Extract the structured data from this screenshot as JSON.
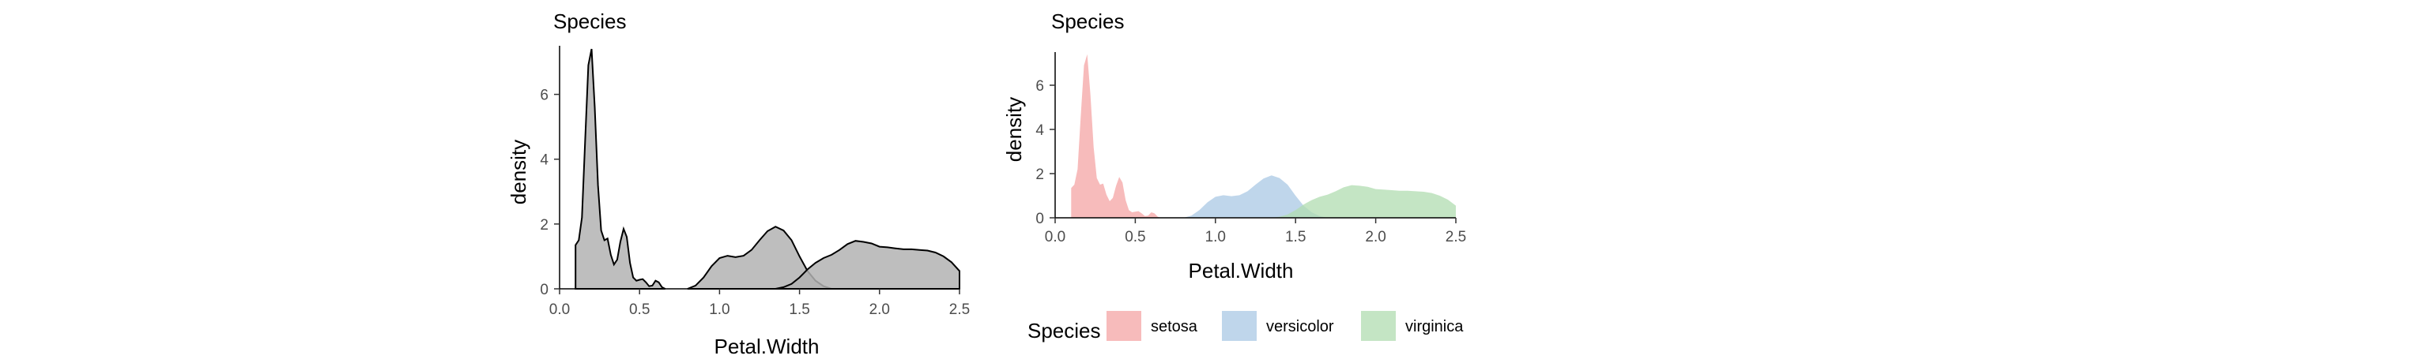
{
  "chart_data": [
    {
      "type": "area",
      "title": "Species",
      "xlabel": "Petal.Width",
      "ylabel": "density",
      "xlim": [
        0.0,
        2.5
      ],
      "ylim": [
        0,
        7.5
      ],
      "x_ticks": [
        "0.0",
        "0.5",
        "1.0",
        "1.5",
        "2.0",
        "2.5"
      ],
      "y_ticks": [
        "0",
        "2",
        "4",
        "6"
      ],
      "grid": false,
      "fill_color": "#b3b3b3",
      "line_color": "#000000",
      "series": [
        {
          "points": [
            [
              0.1,
              1.35
            ],
            [
              0.12,
              1.5
            ],
            [
              0.14,
              2.2
            ],
            [
              0.16,
              4.6
            ],
            [
              0.18,
              6.9
            ],
            [
              0.2,
              7.4
            ],
            [
              0.22,
              5.6
            ],
            [
              0.24,
              3.2
            ],
            [
              0.26,
              1.8
            ],
            [
              0.28,
              1.5
            ],
            [
              0.3,
              1.55
            ],
            [
              0.32,
              1.05
            ],
            [
              0.34,
              0.75
            ],
            [
              0.36,
              0.9
            ],
            [
              0.38,
              1.45
            ],
            [
              0.4,
              1.85
            ],
            [
              0.42,
              1.6
            ],
            [
              0.44,
              0.8
            ],
            [
              0.46,
              0.35
            ],
            [
              0.48,
              0.25
            ],
            [
              0.5,
              0.28
            ],
            [
              0.52,
              0.3
            ],
            [
              0.54,
              0.2
            ],
            [
              0.56,
              0.08
            ],
            [
              0.58,
              0.1
            ],
            [
              0.6,
              0.25
            ],
            [
              0.62,
              0.2
            ],
            [
              0.64,
              0.05
            ],
            [
              0.66,
              0.0
            ]
          ]
        },
        {
          "points": [
            [
              0.8,
              0.0
            ],
            [
              0.85,
              0.1
            ],
            [
              0.9,
              0.35
            ],
            [
              0.95,
              0.7
            ],
            [
              1.0,
              0.95
            ],
            [
              1.05,
              1.02
            ],
            [
              1.1,
              0.98
            ],
            [
              1.15,
              1.02
            ],
            [
              1.2,
              1.2
            ],
            [
              1.25,
              1.5
            ],
            [
              1.3,
              1.78
            ],
            [
              1.35,
              1.92
            ],
            [
              1.4,
              1.8
            ],
            [
              1.45,
              1.5
            ],
            [
              1.5,
              1.0
            ],
            [
              1.55,
              0.55
            ],
            [
              1.6,
              0.25
            ],
            [
              1.65,
              0.08
            ],
            [
              1.7,
              0.0
            ]
          ]
        },
        {
          "points": [
            [
              1.35,
              0.0
            ],
            [
              1.4,
              0.05
            ],
            [
              1.45,
              0.15
            ],
            [
              1.5,
              0.35
            ],
            [
              1.55,
              0.6
            ],
            [
              1.6,
              0.8
            ],
            [
              1.65,
              0.95
            ],
            [
              1.7,
              1.05
            ],
            [
              1.75,
              1.2
            ],
            [
              1.8,
              1.38
            ],
            [
              1.85,
              1.48
            ],
            [
              1.9,
              1.45
            ],
            [
              1.95,
              1.4
            ],
            [
              2.0,
              1.3
            ],
            [
              2.05,
              1.28
            ],
            [
              2.1,
              1.25
            ],
            [
              2.15,
              1.22
            ],
            [
              2.2,
              1.22
            ],
            [
              2.25,
              1.2
            ],
            [
              2.3,
              1.18
            ],
            [
              2.35,
              1.12
            ],
            [
              2.4,
              1.0
            ],
            [
              2.45,
              0.82
            ],
            [
              2.5,
              0.55
            ]
          ]
        }
      ]
    },
    {
      "type": "area",
      "title": "Species",
      "xlabel": "Petal.Width",
      "ylabel": "density",
      "xlim": [
        0.0,
        2.5
      ],
      "ylim": [
        0,
        7.5
      ],
      "x_ticks": [
        "0.0",
        "0.5",
        "1.0",
        "1.5",
        "2.0",
        "2.5"
      ],
      "y_ticks": [
        "0",
        "2",
        "4",
        "6"
      ],
      "grid": false,
      "legend_position": "bottom",
      "series": [
        {
          "name": "setosa",
          "color": "#f4a4a4",
          "points": [
            [
              0.1,
              1.35
            ],
            [
              0.12,
              1.5
            ],
            [
              0.14,
              2.2
            ],
            [
              0.16,
              4.6
            ],
            [
              0.18,
              6.9
            ],
            [
              0.2,
              7.4
            ],
            [
              0.22,
              5.6
            ],
            [
              0.24,
              3.2
            ],
            [
              0.26,
              1.8
            ],
            [
              0.28,
              1.5
            ],
            [
              0.3,
              1.55
            ],
            [
              0.32,
              1.05
            ],
            [
              0.34,
              0.75
            ],
            [
              0.36,
              0.9
            ],
            [
              0.38,
              1.45
            ],
            [
              0.4,
              1.85
            ],
            [
              0.42,
              1.6
            ],
            [
              0.44,
              0.8
            ],
            [
              0.46,
              0.35
            ],
            [
              0.48,
              0.25
            ],
            [
              0.5,
              0.28
            ],
            [
              0.52,
              0.3
            ],
            [
              0.54,
              0.2
            ],
            [
              0.56,
              0.08
            ],
            [
              0.58,
              0.1
            ],
            [
              0.6,
              0.25
            ],
            [
              0.62,
              0.2
            ],
            [
              0.64,
              0.05
            ],
            [
              0.66,
              0.0
            ]
          ]
        },
        {
          "name": "versicolor",
          "color": "#a9c8e4",
          "points": [
            [
              0.8,
              0.0
            ],
            [
              0.85,
              0.1
            ],
            [
              0.9,
              0.35
            ],
            [
              0.95,
              0.7
            ],
            [
              1.0,
              0.95
            ],
            [
              1.05,
              1.02
            ],
            [
              1.1,
              0.98
            ],
            [
              1.15,
              1.02
            ],
            [
              1.2,
              1.2
            ],
            [
              1.25,
              1.5
            ],
            [
              1.3,
              1.78
            ],
            [
              1.35,
              1.92
            ],
            [
              1.4,
              1.8
            ],
            [
              1.45,
              1.5
            ],
            [
              1.5,
              1.0
            ],
            [
              1.55,
              0.55
            ],
            [
              1.6,
              0.25
            ],
            [
              1.65,
              0.08
            ],
            [
              1.7,
              0.0
            ]
          ]
        },
        {
          "name": "virginica",
          "color": "#b0dcb0",
          "points": [
            [
              1.35,
              0.0
            ],
            [
              1.4,
              0.05
            ],
            [
              1.45,
              0.15
            ],
            [
              1.5,
              0.35
            ],
            [
              1.55,
              0.6
            ],
            [
              1.6,
              0.8
            ],
            [
              1.65,
              0.95
            ],
            [
              1.7,
              1.05
            ],
            [
              1.75,
              1.2
            ],
            [
              1.8,
              1.38
            ],
            [
              1.85,
              1.48
            ],
            [
              1.9,
              1.45
            ],
            [
              1.95,
              1.4
            ],
            [
              2.0,
              1.3
            ],
            [
              2.05,
              1.28
            ],
            [
              2.1,
              1.25
            ],
            [
              2.15,
              1.22
            ],
            [
              2.2,
              1.22
            ],
            [
              2.25,
              1.2
            ],
            [
              2.3,
              1.18
            ],
            [
              2.35,
              1.12
            ],
            [
              2.4,
              1.0
            ],
            [
              2.45,
              0.82
            ],
            [
              2.5,
              0.55
            ]
          ]
        }
      ],
      "legend": {
        "title": "Species",
        "entries": [
          "setosa",
          "versicolor",
          "virginica"
        ]
      }
    }
  ]
}
